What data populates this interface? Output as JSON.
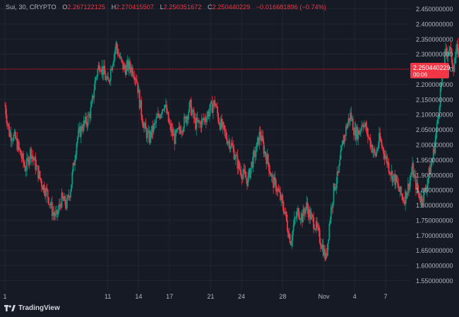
{
  "legend": {
    "symbol": "Sui, 30, CRYPTO",
    "open_label": "O",
    "open": "2.267122125",
    "high_label": "H",
    "high": "2.270415507",
    "low_label": "L",
    "low": "2.250351672",
    "close_label": "C",
    "close": "2.250440229",
    "change": "−0.016681896 (−0.74%)"
  },
  "price_tag": {
    "price": "2.250440229",
    "countdown": "00:06"
  },
  "brand": {
    "name": "TradingView"
  },
  "colors": {
    "background": "#161a25",
    "up": "#089981",
    "down": "#f23645",
    "grid": "#232632",
    "axis_text": "#b2b5be"
  },
  "chart_data": {
    "type": "candlestick",
    "y_axis": {
      "min": 1.52,
      "max": 2.46,
      "ticks": [
        "1.550000000",
        "1.600000000",
        "1.650000000",
        "1.700000000",
        "1.750000000",
        "1.800000000",
        "1.850000000",
        "1.900000000",
        "1.950000000",
        "2.000000000",
        "2.050000000",
        "2.100000000",
        "2.150000000",
        "2.200000000",
        "2.250000000",
        "2.300000000",
        "2.350000000",
        "2.400000000",
        "2.450000000"
      ]
    },
    "x_axis": {
      "ticks": [
        {
          "label": "1",
          "day": 0.0
        },
        {
          "label": "11",
          "day": 10.0
        },
        {
          "label": "14",
          "day": 13.0
        },
        {
          "label": "17",
          "day": 16.0
        },
        {
          "label": "21",
          "day": 20.0
        },
        {
          "label": "24",
          "day": 23.0
        },
        {
          "label": "28",
          "day": 27.0
        },
        {
          "label": "Nov",
          "day": 31.0
        },
        {
          "label": "4",
          "day": 34.0
        },
        {
          "label": "7",
          "day": 37.0
        }
      ]
    },
    "last_price": 2.250440229,
    "path": [
      [
        0.0,
        2.13
      ],
      [
        0.4,
        2.04
      ],
      [
        1.0,
        2.02
      ],
      [
        1.6,
        1.96
      ],
      [
        2.0,
        1.92
      ],
      [
        2.5,
        1.98
      ],
      [
        3.0,
        1.93
      ],
      [
        3.6,
        1.87
      ],
      [
        4.1,
        1.84
      ],
      [
        4.6,
        1.78
      ],
      [
        5.0,
        1.76
      ],
      [
        5.5,
        1.82
      ],
      [
        6.0,
        1.8
      ],
      [
        6.4,
        1.86
      ],
      [
        7.0,
        2.02
      ],
      [
        7.5,
        2.06
      ],
      [
        8.0,
        2.08
      ],
      [
        8.4,
        2.12
      ],
      [
        8.8,
        2.22
      ],
      [
        9.2,
        2.27
      ],
      [
        9.6,
        2.24
      ],
      [
        10.0,
        2.2
      ],
      [
        10.4,
        2.27
      ],
      [
        10.8,
        2.33
      ],
      [
        11.2,
        2.28
      ],
      [
        11.6,
        2.25
      ],
      [
        12.0,
        2.26
      ],
      [
        12.4,
        2.25
      ],
      [
        12.8,
        2.22
      ],
      [
        13.1,
        2.14
      ],
      [
        13.5,
        2.06
      ],
      [
        14.0,
        2.02
      ],
      [
        14.5,
        2.06
      ],
      [
        15.0,
        2.1
      ],
      [
        15.5,
        2.14
      ],
      [
        16.0,
        2.06
      ],
      [
        16.5,
        2.02
      ],
      [
        17.0,
        2.05
      ],
      [
        17.5,
        2.08
      ],
      [
        18.0,
        2.13
      ],
      [
        18.5,
        2.07
      ],
      [
        19.0,
        2.07
      ],
      [
        19.5,
        2.09
      ],
      [
        20.0,
        2.12
      ],
      [
        20.4,
        2.14
      ],
      [
        20.8,
        2.08
      ],
      [
        21.2,
        2.05
      ],
      [
        21.6,
        2.02
      ],
      [
        22.0,
        2.0
      ],
      [
        22.4,
        1.96
      ],
      [
        22.8,
        1.92
      ],
      [
        23.2,
        1.9
      ],
      [
        23.6,
        1.88
      ],
      [
        24.0,
        1.94
      ],
      [
        24.4,
        1.98
      ],
      [
        24.8,
        2.04
      ],
      [
        25.2,
        1.98
      ],
      [
        25.6,
        1.94
      ],
      [
        26.0,
        1.88
      ],
      [
        26.4,
        1.86
      ],
      [
        26.8,
        1.82
      ],
      [
        27.2,
        1.78
      ],
      [
        27.5,
        1.72
      ],
      [
        27.8,
        1.68
      ],
      [
        28.1,
        1.74
      ],
      [
        28.5,
        1.78
      ],
      [
        28.9,
        1.76
      ],
      [
        29.3,
        1.8
      ],
      [
        29.7,
        1.76
      ],
      [
        30.1,
        1.74
      ],
      [
        30.5,
        1.7
      ],
      [
        30.9,
        1.66
      ],
      [
        31.2,
        1.62
      ],
      [
        31.6,
        1.76
      ],
      [
        32.0,
        1.86
      ],
      [
        32.4,
        1.9
      ],
      [
        32.8,
        2.0
      ],
      [
        33.2,
        2.06
      ],
      [
        33.6,
        2.1
      ],
      [
        34.0,
        2.04
      ],
      [
        34.4,
        2.04
      ],
      [
        34.8,
        2.08
      ],
      [
        35.2,
        2.04
      ],
      [
        35.6,
        2.0
      ],
      [
        36.0,
        1.96
      ],
      [
        36.4,
        2.02
      ],
      [
        36.8,
        1.98
      ],
      [
        37.2,
        1.94
      ],
      [
        37.6,
        1.9
      ],
      [
        38.0,
        1.88
      ],
      [
        38.4,
        1.84
      ],
      [
        38.8,
        1.82
      ],
      [
        39.2,
        1.86
      ],
      [
        39.6,
        1.92
      ],
      [
        40.0,
        1.86
      ],
      [
        40.4,
        1.82
      ],
      [
        40.8,
        1.84
      ],
      [
        41.2,
        1.9
      ],
      [
        41.6,
        1.96
      ],
      [
        42.0,
        2.06
      ],
      [
        42.4,
        2.2
      ],
      [
        42.8,
        2.3
      ],
      [
        43.2,
        2.32
      ],
      [
        43.6,
        2.26
      ],
      [
        44.0,
        2.32
      ],
      [
        44.4,
        2.26
      ],
      [
        44.8,
        2.34
      ],
      [
        45.2,
        2.3
      ],
      [
        45.6,
        2.28
      ],
      [
        46.0,
        2.26
      ],
      [
        46.3,
        2.25
      ]
    ],
    "segment_days": [
      0,
      31.0,
      46.3
    ],
    "grid": true,
    "legend_position": "top-left"
  }
}
